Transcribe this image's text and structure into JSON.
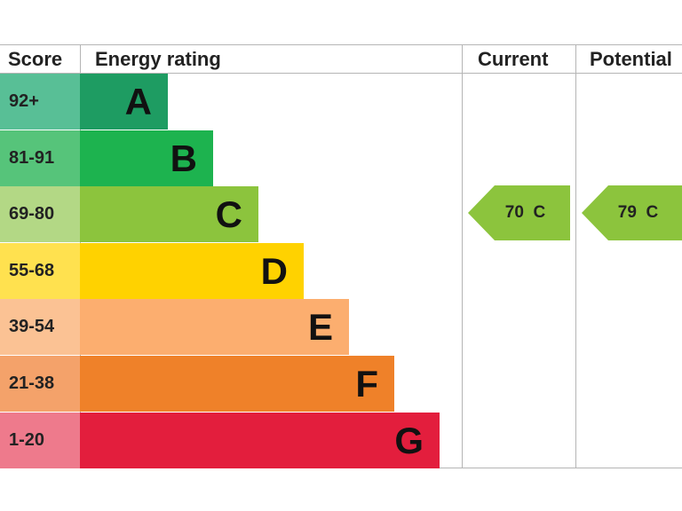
{
  "headers": {
    "score": "Score",
    "energy_rating": "Energy rating",
    "current": "Current",
    "potential": "Potential"
  },
  "chart_data": {
    "type": "bar",
    "categories": [
      "92+",
      "81-91",
      "69-80",
      "55-68",
      "39-54",
      "21-38",
      "1-20"
    ],
    "bands": [
      {
        "score": "92+",
        "letter": "A",
        "color": "#1e9c62",
        "score_bg": "#58bf96"
      },
      {
        "score": "81-91",
        "letter": "B",
        "color": "#1db34f",
        "score_bg": "#56c47a"
      },
      {
        "score": "69-80",
        "letter": "C",
        "color": "#8cc43d",
        "score_bg": "#b3d885"
      },
      {
        "score": "55-68",
        "letter": "D",
        "color": "#ffd200",
        "score_bg": "#ffe14f"
      },
      {
        "score": "39-54",
        "letter": "E",
        "color": "#fcae6f",
        "score_bg": "#fbc294"
      },
      {
        "score": "21-38",
        "letter": "F",
        "color": "#ef8129",
        "score_bg": "#f4a26a"
      },
      {
        "score": "1-20",
        "letter": "G",
        "color": "#e31e3d",
        "score_bg": "#ee7a8c"
      }
    ],
    "current": {
      "value": 70,
      "band": "C",
      "label": "70  C",
      "color": "#8cc43d"
    },
    "potential": {
      "value": 79,
      "band": "C",
      "label": "79  C",
      "color": "#8cc43d"
    }
  }
}
